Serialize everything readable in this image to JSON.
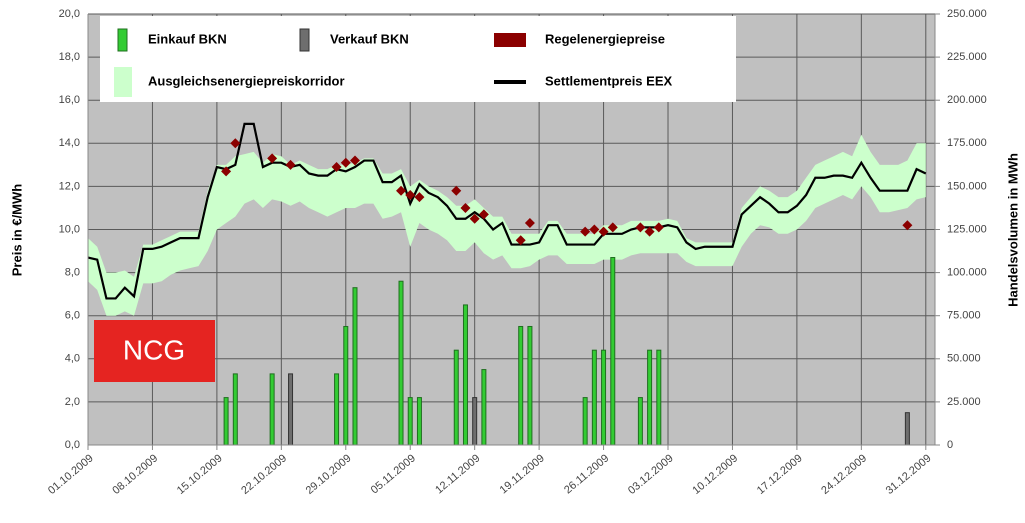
{
  "chart_data": {
    "type": "combo",
    "ylabel": "Preis in €/MWh",
    "y2label": "Handelsvolumen in MWh",
    "annotation": "NCG",
    "grid": true,
    "xlim": [
      "2009-10-01",
      "2010-01-01"
    ],
    "xticks": [
      {
        "value": "2009-10-01",
        "label": "01.10.2009"
      },
      {
        "value": "2009-10-08",
        "label": "08.10.2009"
      },
      {
        "value": "2009-10-15",
        "label": "15.10.2009"
      },
      {
        "value": "2009-10-22",
        "label": "22.10.2009"
      },
      {
        "value": "2009-10-29",
        "label": "29.10.2009"
      },
      {
        "value": "2009-11-05",
        "label": "05.11.2009"
      },
      {
        "value": "2009-11-12",
        "label": "12.11.2009"
      },
      {
        "value": "2009-11-19",
        "label": "19.11.2009"
      },
      {
        "value": "2009-11-26",
        "label": "26.11.2009"
      },
      {
        "value": "2009-12-03",
        "label": "03.12.2009"
      },
      {
        "value": "2009-12-10",
        "label": "10.12.2009"
      },
      {
        "value": "2009-12-17",
        "label": "17.12.2009"
      },
      {
        "value": "2009-12-24",
        "label": "24.12.2009"
      },
      {
        "value": "2009-12-31",
        "label": "31.12.2009"
      }
    ],
    "ylim": [
      0,
      20
    ],
    "yticks": [
      {
        "value": 0,
        "label": "0,0"
      },
      {
        "value": 2,
        "label": "2,0"
      },
      {
        "value": 4,
        "label": "4,0"
      },
      {
        "value": 6,
        "label": "6,0"
      },
      {
        "value": 8,
        "label": "8,0"
      },
      {
        "value": 10,
        "label": "10,0"
      },
      {
        "value": 12,
        "label": "12,0"
      },
      {
        "value": 14,
        "label": "14,0"
      },
      {
        "value": 16,
        "label": "16,0"
      },
      {
        "value": 18,
        "label": "18,0"
      },
      {
        "value": 20,
        "label": "20,0"
      }
    ],
    "y2lim": [
      0,
      250000
    ],
    "y2ticks": [
      0,
      {
        "value": 25000,
        "label": "25.000"
      },
      {
        "value": 50000,
        "label": "50.000"
      },
      {
        "value": 75000,
        "label": "75.000"
      },
      {
        "value": 100000,
        "label": "100.000"
      },
      {
        "value": 125000,
        "label": "125.000"
      },
      {
        "value": 150000,
        "label": "150.000"
      },
      {
        "value": 175000,
        "label": "175.000"
      },
      {
        "value": 200000,
        "label": "200.000"
      },
      {
        "value": 225000,
        "label": "225.000"
      },
      {
        "value": 250000,
        "label": "250.000"
      }
    ],
    "x": [
      "2009-10-01",
      "2009-10-02",
      "2009-10-03",
      "2009-10-04",
      "2009-10-05",
      "2009-10-06",
      "2009-10-07",
      "2009-10-08",
      "2009-10-09",
      "2009-10-10",
      "2009-10-11",
      "2009-10-12",
      "2009-10-13",
      "2009-10-14",
      "2009-10-15",
      "2009-10-16",
      "2009-10-17",
      "2009-10-18",
      "2009-10-19",
      "2009-10-20",
      "2009-10-21",
      "2009-10-22",
      "2009-10-23",
      "2009-10-24",
      "2009-10-25",
      "2009-10-26",
      "2009-10-27",
      "2009-10-28",
      "2009-10-29",
      "2009-10-30",
      "2009-10-31",
      "2009-11-01",
      "2009-11-02",
      "2009-11-03",
      "2009-11-04",
      "2009-11-05",
      "2009-11-06",
      "2009-11-07",
      "2009-11-08",
      "2009-11-09",
      "2009-11-10",
      "2009-11-11",
      "2009-11-12",
      "2009-11-13",
      "2009-11-14",
      "2009-11-15",
      "2009-11-16",
      "2009-11-17",
      "2009-11-18",
      "2009-11-19",
      "2009-11-20",
      "2009-11-21",
      "2009-11-22",
      "2009-11-23",
      "2009-11-24",
      "2009-11-25",
      "2009-11-26",
      "2009-11-27",
      "2009-11-28",
      "2009-11-29",
      "2009-11-30",
      "2009-12-01",
      "2009-12-02",
      "2009-12-03",
      "2009-12-04",
      "2009-12-05",
      "2009-12-06",
      "2009-12-07",
      "2009-12-08",
      "2009-12-09",
      "2009-12-10",
      "2009-12-11",
      "2009-12-12",
      "2009-12-13",
      "2009-12-14",
      "2009-12-15",
      "2009-12-16",
      "2009-12-17",
      "2009-12-18",
      "2009-12-19",
      "2009-12-20",
      "2009-12-21",
      "2009-12-22",
      "2009-12-23",
      "2009-12-24",
      "2009-12-25",
      "2009-12-26",
      "2009-12-27",
      "2009-12-28",
      "2009-12-29",
      "2009-12-30",
      "2009-12-31"
    ],
    "series": [
      {
        "name": "Einkauf BKN",
        "type": "bar",
        "axis": "y2",
        "color": "#33cc33",
        "edge": "#1f6f1f",
        "x": [
          "2009-10-16",
          "2009-10-17",
          "2009-10-21",
          "2009-10-28",
          "2009-10-29",
          "2009-10-30",
          "2009-11-04",
          "2009-11-05",
          "2009-11-06",
          "2009-11-10",
          "2009-11-11",
          "2009-11-13",
          "2009-11-17",
          "2009-11-18",
          "2009-11-24",
          "2009-11-25",
          "2009-11-26",
          "2009-11-27",
          "2009-11-30",
          "2009-12-01",
          "2009-12-02"
        ],
        "values": [
          27500,
          41250,
          41250,
          41250,
          68750,
          91250,
          95000,
          27500,
          27500,
          55000,
          81250,
          43750,
          68750,
          68750,
          27500,
          55000,
          55000,
          108750,
          27500,
          55000,
          55000
        ]
      },
      {
        "name": "Verkauf BKN",
        "type": "bar",
        "axis": "y2",
        "color": "#6e6e6e",
        "edge": "#333333",
        "x": [
          "2009-10-23",
          "2009-11-12",
          "2009-12-29"
        ],
        "values": [
          41250,
          27500,
          18750
        ]
      },
      {
        "name": "Regelenergiepreise",
        "type": "scatter",
        "color": "#8b0000",
        "x": [
          "2009-10-16",
          "2009-10-17",
          "2009-10-21",
          "2009-10-23",
          "2009-10-28",
          "2009-10-29",
          "2009-10-30",
          "2009-11-04",
          "2009-11-05",
          "2009-11-06",
          "2009-11-10",
          "2009-11-11",
          "2009-11-12",
          "2009-11-13",
          "2009-11-17",
          "2009-11-18",
          "2009-11-24",
          "2009-11-25",
          "2009-11-26",
          "2009-11-27",
          "2009-11-30",
          "2009-12-01",
          "2009-12-02",
          "2009-12-29"
        ],
        "values": [
          12.7,
          14.0,
          13.3,
          13.0,
          12.9,
          13.1,
          13.2,
          11.8,
          11.6,
          11.5,
          11.8,
          11.0,
          10.5,
          10.7,
          9.5,
          10.3,
          9.9,
          10.0,
          9.9,
          10.1,
          10.1,
          9.9,
          10.1,
          10.2
        ]
      },
      {
        "name": "Ausgleichsenergiepreiskorridor",
        "type": "area",
        "color": "#ccffcc",
        "high": [
          9.6,
          9.2,
          8.0,
          8.0,
          8.1,
          7.8,
          9.3,
          9.3,
          9.5,
          9.7,
          9.9,
          9.9,
          9.9,
          11.8,
          13.0,
          13.0,
          13.4,
          13.5,
          13.6,
          13.1,
          13.5,
          13.4,
          13.0,
          13.2,
          13.0,
          12.8,
          12.8,
          13.0,
          13.0,
          13.1,
          13.3,
          13.3,
          12.6,
          12.6,
          12.8,
          12.0,
          12.3,
          12.0,
          11.8,
          11.5,
          11.1,
          11.1,
          11.4,
          11.0,
          10.6,
          10.6,
          9.8,
          9.8,
          9.8,
          9.8,
          10.4,
          10.4,
          9.8,
          9.8,
          9.8,
          9.8,
          10.2,
          10.2,
          10.2,
          10.4,
          10.4,
          10.4,
          10.4,
          10.5,
          10.4,
          9.6,
          9.4,
          9.4,
          9.4,
          9.4,
          9.4,
          11.0,
          11.5,
          12.0,
          11.8,
          11.5,
          11.5,
          11.8,
          12.4,
          13.0,
          13.2,
          13.4,
          13.6,
          13.4,
          14.4,
          13.6,
          13.0,
          13.0,
          13.0,
          13.2,
          14.0,
          14.0
        ],
        "low": [
          7.6,
          7.2,
          6.0,
          6.0,
          6.2,
          6.0,
          7.5,
          7.5,
          7.6,
          7.9,
          8.1,
          8.2,
          8.3,
          9.0,
          10.0,
          10.3,
          10.6,
          11.2,
          11.4,
          11.0,
          11.4,
          11.3,
          11.1,
          11.3,
          11.0,
          10.8,
          10.6,
          10.8,
          11.0,
          11.0,
          11.2,
          11.2,
          10.5,
          10.6,
          10.8,
          9.2,
          10.3,
          10.0,
          9.8,
          9.5,
          9.0,
          9.0,
          9.4,
          8.9,
          8.6,
          8.8,
          8.2,
          8.2,
          8.3,
          8.6,
          8.8,
          8.8,
          8.4,
          8.4,
          8.4,
          8.4,
          8.6,
          8.6,
          8.6,
          8.8,
          8.9,
          8.9,
          8.9,
          8.9,
          8.9,
          8.5,
          8.3,
          8.3,
          8.3,
          8.3,
          8.3,
          9.2,
          9.8,
          10.2,
          10.1,
          9.8,
          9.8,
          10.0,
          10.4,
          11.0,
          11.2,
          11.4,
          11.6,
          11.4,
          12.0,
          11.5,
          10.8,
          10.8,
          10.9,
          11.0,
          11.4,
          11.5
        ]
      },
      {
        "name": "Settlementpreis EEX",
        "type": "line",
        "color": "#000000",
        "values": [
          8.7,
          8.6,
          6.8,
          6.8,
          7.3,
          6.9,
          9.1,
          9.1,
          9.2,
          9.4,
          9.6,
          9.6,
          9.6,
          11.5,
          12.9,
          12.8,
          13.0,
          14.9,
          14.9,
          12.9,
          13.1,
          13.1,
          12.9,
          13.0,
          12.6,
          12.5,
          12.5,
          12.8,
          12.7,
          12.9,
          13.2,
          13.2,
          12.2,
          12.2,
          12.5,
          11.2,
          12.1,
          11.7,
          11.5,
          11.1,
          10.5,
          10.5,
          10.8,
          10.5,
          10.0,
          10.3,
          9.3,
          9.3,
          9.3,
          9.4,
          10.2,
          10.2,
          9.3,
          9.3,
          9.3,
          9.3,
          9.8,
          9.8,
          9.8,
          10.0,
          10.1,
          10.1,
          10.1,
          10.2,
          10.1,
          9.4,
          9.1,
          9.2,
          9.2,
          9.2,
          9.2,
          10.7,
          11.1,
          11.5,
          11.2,
          10.8,
          10.8,
          11.1,
          11.6,
          12.4,
          12.4,
          12.5,
          12.5,
          12.4,
          13.1,
          12.4,
          11.8,
          11.8,
          11.8,
          11.8,
          12.8,
          12.6
        ]
      }
    ]
  }
}
